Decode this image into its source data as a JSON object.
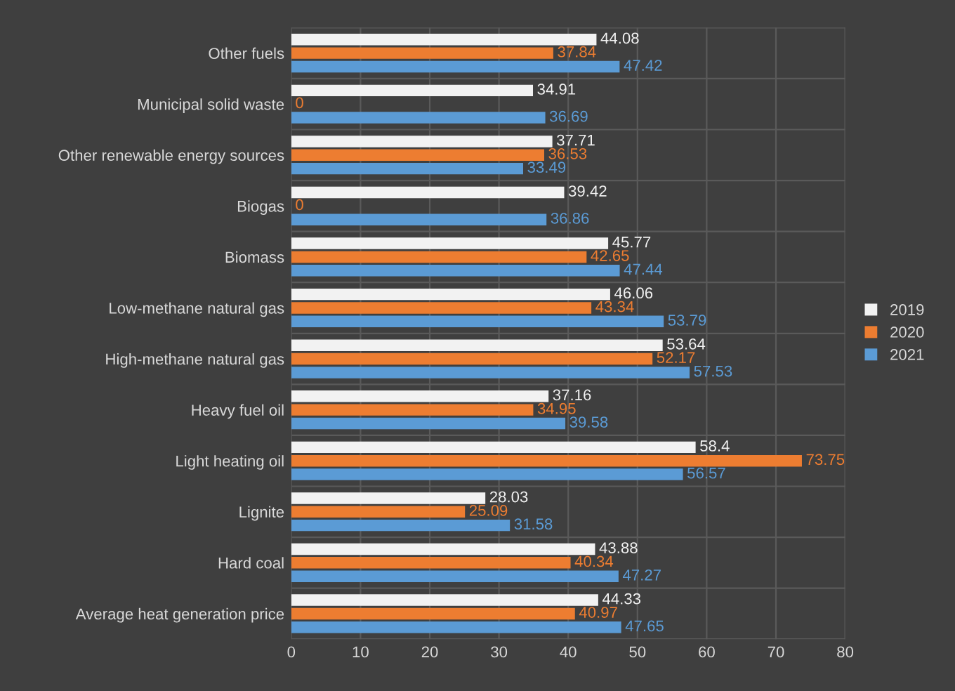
{
  "chart_data": {
    "type": "bar",
    "orientation": "horizontal",
    "categories": [
      "Other fuels",
      "Municipal solid waste",
      "Other renewable energy sources",
      "Biogas",
      "Biomass",
      "Low-methane natural gas",
      "High-methane natural gas",
      "Heavy fuel oil",
      "Light heating oil",
      "Lignite",
      "Hard coal",
      "Average heat generation price"
    ],
    "series": [
      {
        "name": "2019",
        "color": "#f2f2f2",
        "values": [
          44.08,
          34.91,
          37.71,
          39.42,
          45.77,
          46.06,
          53.64,
          37.16,
          58.4,
          28.03,
          43.88,
          44.33
        ]
      },
      {
        "name": "2020",
        "color": "#ed7d31",
        "values": [
          37.84,
          0,
          36.53,
          0,
          42.65,
          43.34,
          52.17,
          34.95,
          73.75,
          25.09,
          40.34,
          40.97
        ]
      },
      {
        "name": "2021",
        "color": "#5b9bd5",
        "values": [
          47.42,
          36.69,
          33.49,
          36.86,
          47.44,
          53.79,
          57.53,
          39.58,
          56.57,
          31.58,
          47.27,
          47.65
        ]
      }
    ],
    "xlim": [
      0,
      80
    ],
    "xticks": [
      0,
      10,
      20,
      30,
      40,
      50,
      60,
      70,
      80
    ],
    "grid": true,
    "legend": "right",
    "data_labels": true
  }
}
